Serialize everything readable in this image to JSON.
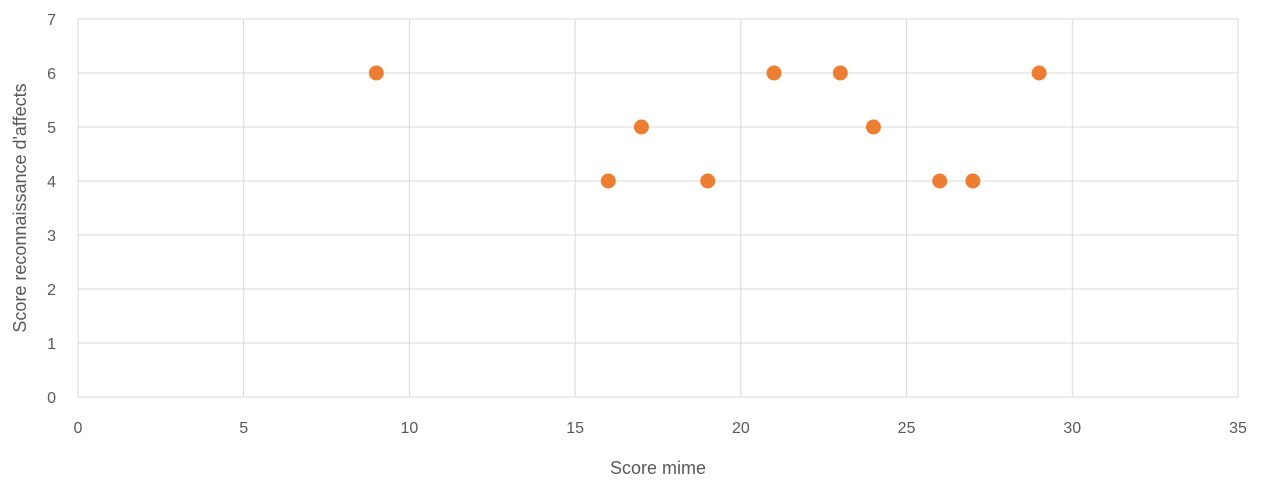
{
  "chart_data": {
    "type": "scatter",
    "title": "",
    "xlabel": "Score mime",
    "ylabel": "Score reconnaissance d'affects",
    "xlim": [
      0,
      35
    ],
    "ylim": [
      0,
      7
    ],
    "x_ticks": [
      "0",
      "5",
      "10",
      "15",
      "20",
      "25",
      "30",
      "35"
    ],
    "y_ticks": [
      "0",
      "1",
      "2",
      "3",
      "4",
      "5",
      "6",
      "7"
    ],
    "grid": true,
    "legend": "none",
    "marker_color": "#ed7d31",
    "series": [
      {
        "points": [
          {
            "x": 9,
            "y": 6
          },
          {
            "x": 16,
            "y": 4
          },
          {
            "x": 17,
            "y": 5
          },
          {
            "x": 19,
            "y": 4
          },
          {
            "x": 21,
            "y": 6
          },
          {
            "x": 23,
            "y": 6
          },
          {
            "x": 24,
            "y": 5
          },
          {
            "x": 26,
            "y": 4
          },
          {
            "x": 27,
            "y": 4
          },
          {
            "x": 29,
            "y": 6
          }
        ]
      }
    ]
  }
}
